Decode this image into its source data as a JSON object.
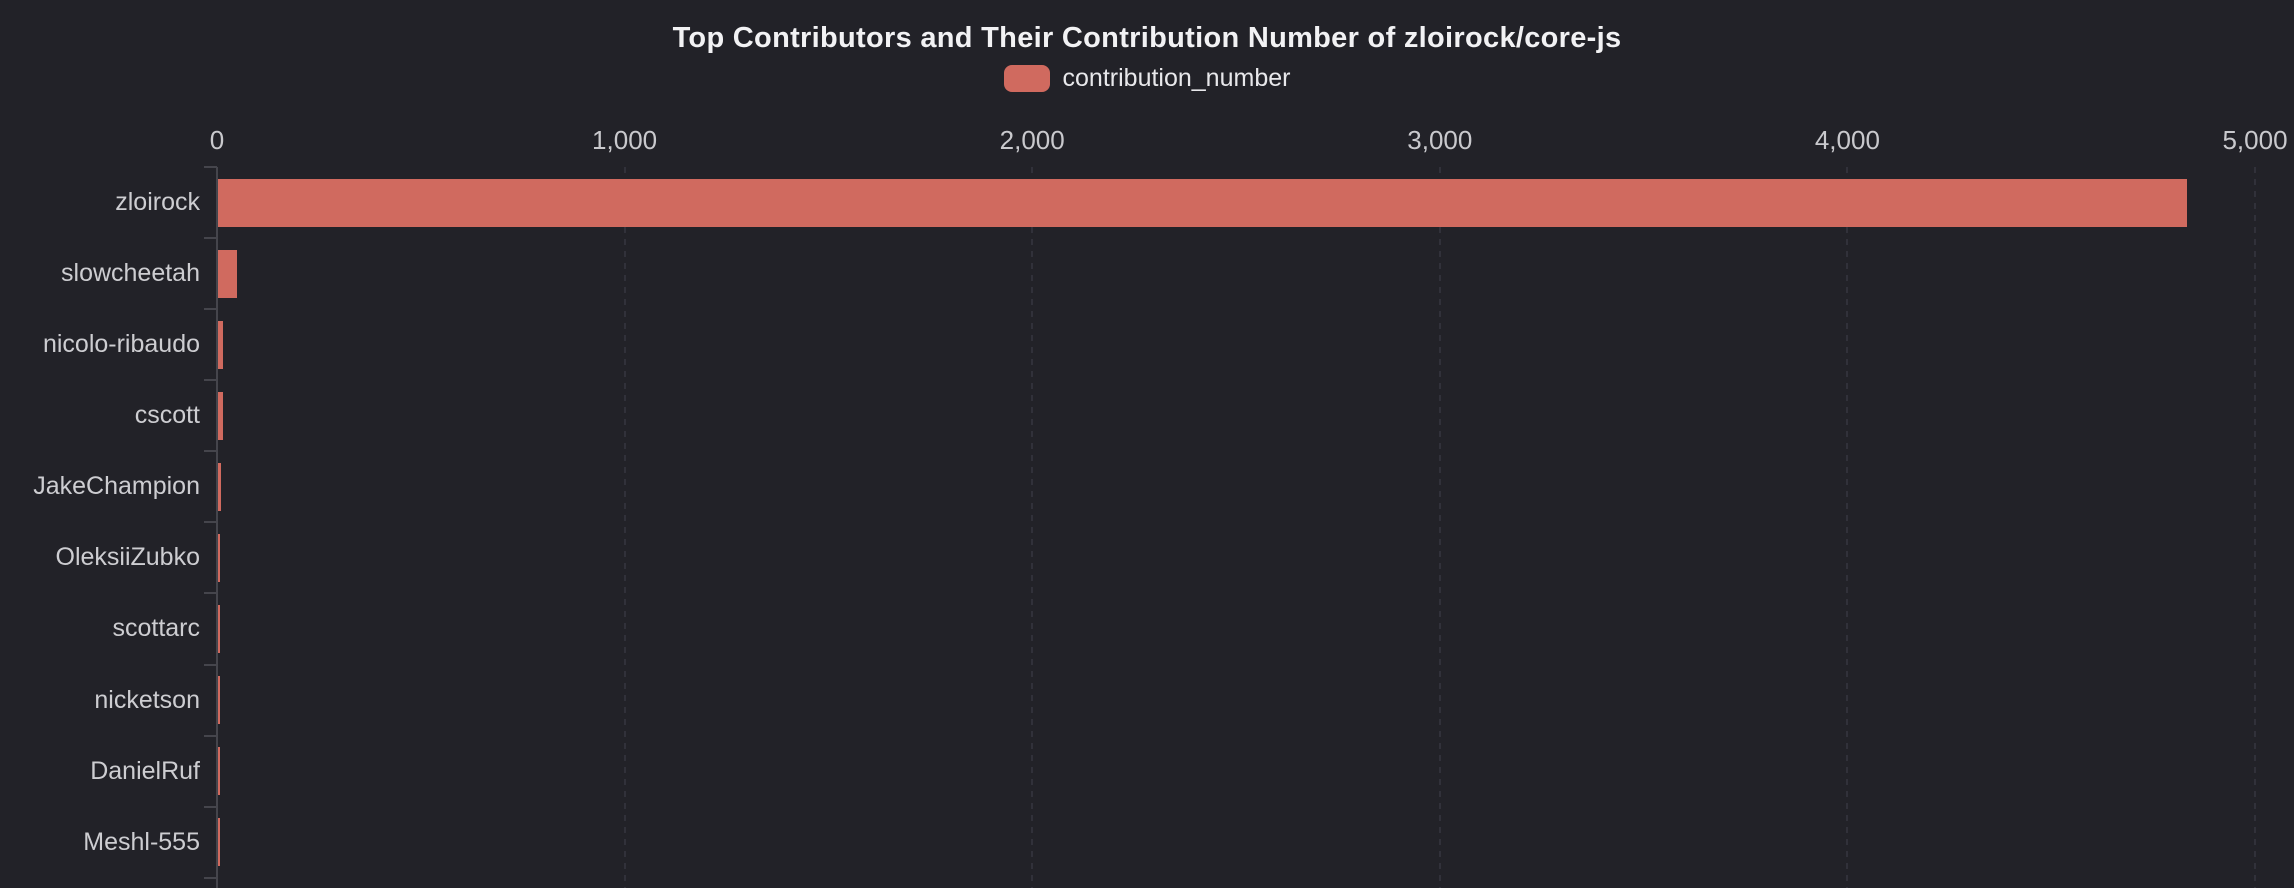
{
  "page": {
    "background_color": "#222228"
  },
  "chart_data": {
    "type": "bar",
    "orientation": "horizontal",
    "title": "Top Contributors and Their Contribution Number of zloirock/core-js",
    "categories": [
      "zloirock",
      "slowcheetah",
      "nicolo-ribaudo",
      "cscott",
      "JakeChampion",
      "OleksiiZubko",
      "scottarc",
      "nicketson",
      "DanielRuf",
      "Meshl-555"
    ],
    "series": [
      {
        "name": "contribution_number",
        "color": "#d06a5f",
        "values": [
          4830,
          46,
          13,
          12,
          7,
          6,
          6,
          6,
          5,
          5
        ]
      }
    ],
    "xlabel": "",
    "ylabel": "",
    "x_axis": {
      "position": "top",
      "min": 0,
      "max": 5000,
      "tick_interval": 1000,
      "tick_values": [
        0,
        1000,
        2000,
        3000,
        4000,
        5000
      ],
      "tick_labels": [
        "0",
        "1,000",
        "2,000",
        "3,000",
        "4,000",
        "5,000"
      ],
      "gridlines": "dashed-vertical"
    },
    "y_axis": {
      "ticks": "band-boundaries",
      "axis_line_color": "#45454c"
    },
    "legend_position": "top",
    "legend_icon": "rounded-rect",
    "grid_color": "#31313a",
    "text_colors": {
      "title": "#f2f2f4",
      "axis_tick_label": "#c9c9cd",
      "category_label": "#cdcdd1",
      "legend_label": "#e8e8eb"
    }
  }
}
